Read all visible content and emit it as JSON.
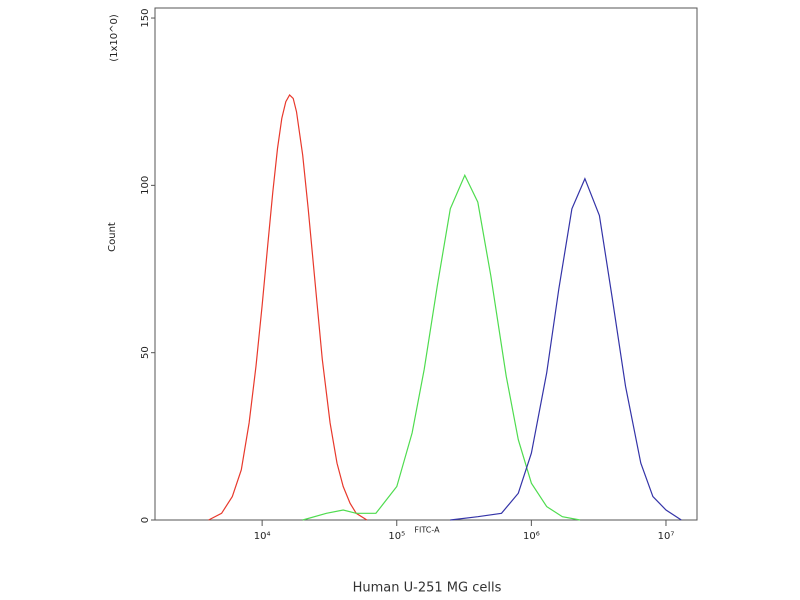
{
  "chart_data": {
    "type": "line",
    "caption": "Human U-251 MG cells",
    "x_label": "FITC-A",
    "y_label": "Count",
    "y_scale_label": "(1x10^0)",
    "x_log": true,
    "xlim": [
      1600,
      17000000
    ],
    "ylim": [
      0,
      153
    ],
    "xticks": [
      {
        "value": 10000,
        "label": "10⁴"
      },
      {
        "value": 100000,
        "label": "10⁵"
      },
      {
        "value": 1000000,
        "label": "10⁶"
      },
      {
        "value": 10000000,
        "label": "10⁷"
      }
    ],
    "yticks": [
      0,
      50,
      100,
      150
    ],
    "series": [
      {
        "color": "#e8392c",
        "x": [
          4000,
          5000,
          6000,
          7000,
          8000,
          9000,
          10000,
          11000,
          12000,
          13000,
          14000,
          15000,
          16000,
          17000,
          18000,
          20000,
          22000,
          25000,
          28000,
          32000,
          36000,
          40000,
          45000,
          50000,
          60000
        ],
        "values": [
          0,
          2,
          7,
          15,
          29,
          46,
          64,
          82,
          98,
          111,
          120,
          125,
          127,
          126,
          122,
          109,
          93,
          69,
          48,
          29,
          17,
          10,
          5,
          2,
          0
        ]
      },
      {
        "color": "#4fdc4f",
        "x": [
          20000,
          30000,
          40000,
          50000,
          70000,
          100000,
          130000,
          160000,
          200000,
          250000,
          320000,
          400000,
          500000,
          650000,
          800000,
          1000000,
          1300000,
          1700000,
          2300000
        ],
        "values": [
          0,
          2,
          3,
          2,
          2,
          10,
          26,
          45,
          70,
          93,
          103,
          95,
          73,
          43,
          24,
          11,
          4,
          1,
          0
        ]
      },
      {
        "color": "#3434a8",
        "x": [
          250000,
          400000,
          600000,
          800000,
          1000000,
          1300000,
          1600000,
          2000000,
          2500000,
          3200000,
          4000000,
          5000000,
          6500000,
          8000000,
          10000000,
          13000000
        ],
        "values": [
          0,
          1,
          2,
          8,
          20,
          44,
          69,
          93,
          102,
          91,
          66,
          40,
          17,
          7,
          3,
          0
        ]
      }
    ]
  }
}
